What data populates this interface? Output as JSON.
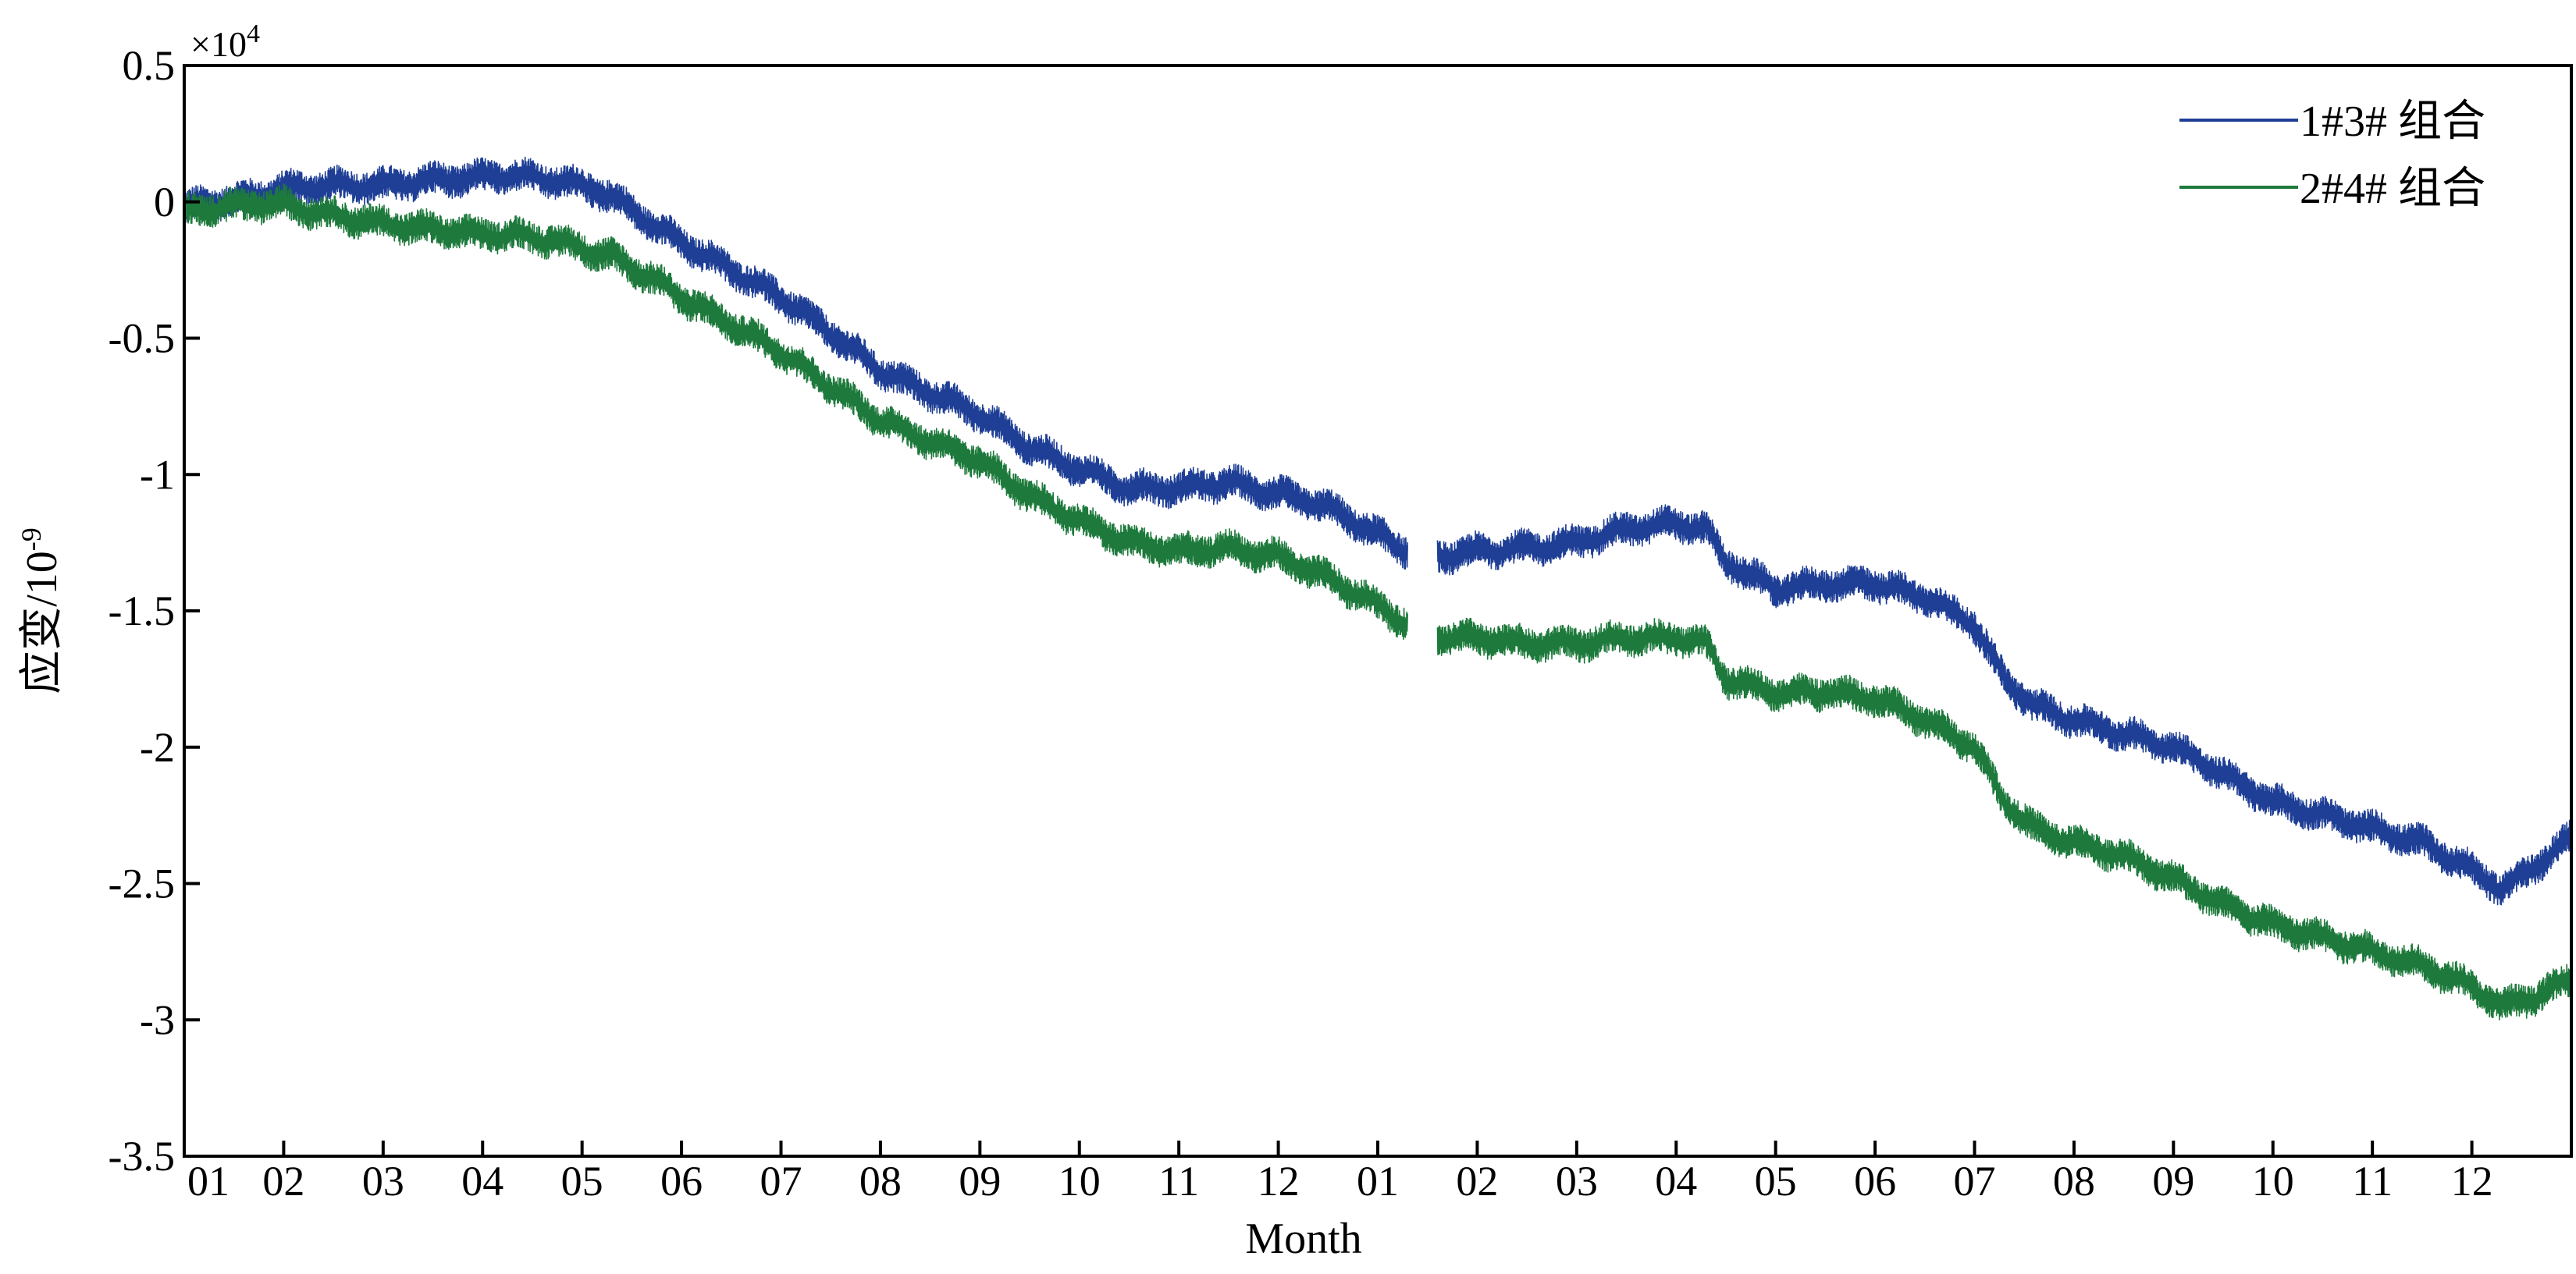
{
  "chart_data": {
    "type": "line",
    "title": "",
    "xlabel": "Month",
    "ylabel": "应变/10",
    "ylabel_exponent": "-9",
    "y_scale_prefix": "×10",
    "y_scale_exponent": "4",
    "y_scale_factor": 10000,
    "ylim": [
      -3.5,
      0.5
    ],
    "y_ticks": [
      "0.5",
      "0",
      "-0.5",
      "-1",
      "-1.5",
      "-2",
      "-2.5",
      "-3",
      "-3.5"
    ],
    "x_ticks": [
      "01",
      "02",
      "03",
      "04",
      "05",
      "06",
      "07",
      "08",
      "09",
      "10",
      "11",
      "12",
      "01",
      "02",
      "03",
      "04",
      "05",
      "06",
      "07",
      "08",
      "09",
      "10",
      "11",
      "12"
    ],
    "xlim": [
      0,
      24
    ],
    "grid": false,
    "legend_position": "top-right",
    "noise_amplitude": 0.06,
    "series": [
      {
        "name": "1#3# 组合",
        "color": "#1f3f96",
        "segments": [
          [
            [
              0,
              -0.02
            ],
            [
              0.3,
              0.0
            ],
            [
              0.7,
              0.02
            ],
            [
              1.0,
              0.05
            ],
            [
              1.5,
              0.06
            ],
            [
              2.0,
              0.06
            ],
            [
              2.5,
              0.08
            ],
            [
              3.0,
              0.09
            ],
            [
              3.3,
              0.1
            ],
            [
              3.7,
              0.08
            ],
            [
              4.0,
              0.06
            ],
            [
              4.3,
              0.02
            ],
            [
              4.7,
              -0.08
            ],
            [
              5.0,
              -0.15
            ],
            [
              5.5,
              -0.25
            ],
            [
              6.0,
              -0.35
            ],
            [
              6.5,
              -0.48
            ],
            [
              7.0,
              -0.62
            ],
            [
              7.5,
              -0.7
            ],
            [
              8.0,
              -0.78
            ],
            [
              8.5,
              -0.9
            ],
            [
              9.0,
              -0.98
            ],
            [
              9.5,
              -1.05
            ],
            [
              10.0,
              -1.05
            ],
            [
              10.5,
              -1.03
            ],
            [
              11.0,
              -1.07
            ],
            [
              11.5,
              -1.12
            ],
            [
              12.0,
              -1.22
            ],
            [
              12.3,
              -1.28
            ]
          ],
          [
            [
              12.6,
              -1.3
            ],
            [
              13.0,
              -1.28
            ],
            [
              13.5,
              -1.27
            ],
            [
              14.0,
              -1.25
            ],
            [
              14.5,
              -1.2
            ],
            [
              15.0,
              -1.18
            ],
            [
              15.3,
              -1.2
            ],
            [
              15.5,
              -1.32
            ],
            [
              16.0,
              -1.42
            ],
            [
              16.5,
              -1.4
            ],
            [
              17.0,
              -1.4
            ],
            [
              17.5,
              -1.45
            ],
            [
              18.0,
              -1.55
            ],
            [
              18.3,
              -1.75
            ],
            [
              18.6,
              -1.85
            ],
            [
              19.0,
              -1.9
            ],
            [
              19.5,
              -1.95
            ],
            [
              20.0,
              -2.0
            ],
            [
              20.5,
              -2.1
            ],
            [
              21.0,
              -2.2
            ],
            [
              21.5,
              -2.25
            ],
            [
              22.0,
              -2.3
            ],
            [
              22.5,
              -2.35
            ],
            [
              23.0,
              -2.45
            ],
            [
              23.3,
              -2.52
            ],
            [
              23.6,
              -2.45
            ],
            [
              24.0,
              -2.33
            ]
          ]
        ]
      },
      {
        "name": "2#4# 组合",
        "color": "#1e7a3c",
        "segments": [
          [
            [
              0,
              -0.04
            ],
            [
              0.3,
              -0.02
            ],
            [
              0.7,
              -0.01
            ],
            [
              1.0,
              -0.01
            ],
            [
              1.5,
              -0.05
            ],
            [
              2.0,
              -0.08
            ],
            [
              2.5,
              -0.1
            ],
            [
              3.0,
              -0.12
            ],
            [
              3.3,
              -0.12
            ],
            [
              3.7,
              -0.14
            ],
            [
              4.0,
              -0.17
            ],
            [
              4.3,
              -0.2
            ],
            [
              4.7,
              -0.28
            ],
            [
              5.0,
              -0.35
            ],
            [
              5.5,
              -0.45
            ],
            [
              6.0,
              -0.55
            ],
            [
              6.5,
              -0.68
            ],
            [
              7.0,
              -0.8
            ],
            [
              7.5,
              -0.88
            ],
            [
              8.0,
              -0.95
            ],
            [
              8.5,
              -1.08
            ],
            [
              9.0,
              -1.17
            ],
            [
              9.5,
              -1.25
            ],
            [
              10.0,
              -1.28
            ],
            [
              10.5,
              -1.27
            ],
            [
              11.0,
              -1.3
            ],
            [
              11.5,
              -1.38
            ],
            [
              12.0,
              -1.48
            ],
            [
              12.3,
              -1.55
            ]
          ],
          [
            [
              12.6,
              -1.6
            ],
            [
              13.0,
              -1.6
            ],
            [
              13.5,
              -1.62
            ],
            [
              14.0,
              -1.62
            ],
            [
              14.5,
              -1.6
            ],
            [
              15.0,
              -1.6
            ],
            [
              15.3,
              -1.62
            ],
            [
              15.5,
              -1.75
            ],
            [
              16.0,
              -1.8
            ],
            [
              16.5,
              -1.8
            ],
            [
              17.0,
              -1.82
            ],
            [
              17.5,
              -1.9
            ],
            [
              18.0,
              -2.0
            ],
            [
              18.3,
              -2.2
            ],
            [
              18.6,
              -2.3
            ],
            [
              19.0,
              -2.35
            ],
            [
              19.5,
              -2.4
            ],
            [
              20.0,
              -2.48
            ],
            [
              20.5,
              -2.58
            ],
            [
              21.0,
              -2.65
            ],
            [
              21.5,
              -2.7
            ],
            [
              22.0,
              -2.75
            ],
            [
              22.5,
              -2.8
            ],
            [
              23.0,
              -2.88
            ],
            [
              23.3,
              -2.95
            ],
            [
              23.6,
              -2.92
            ],
            [
              24.0,
              -2.85
            ]
          ]
        ]
      }
    ]
  }
}
